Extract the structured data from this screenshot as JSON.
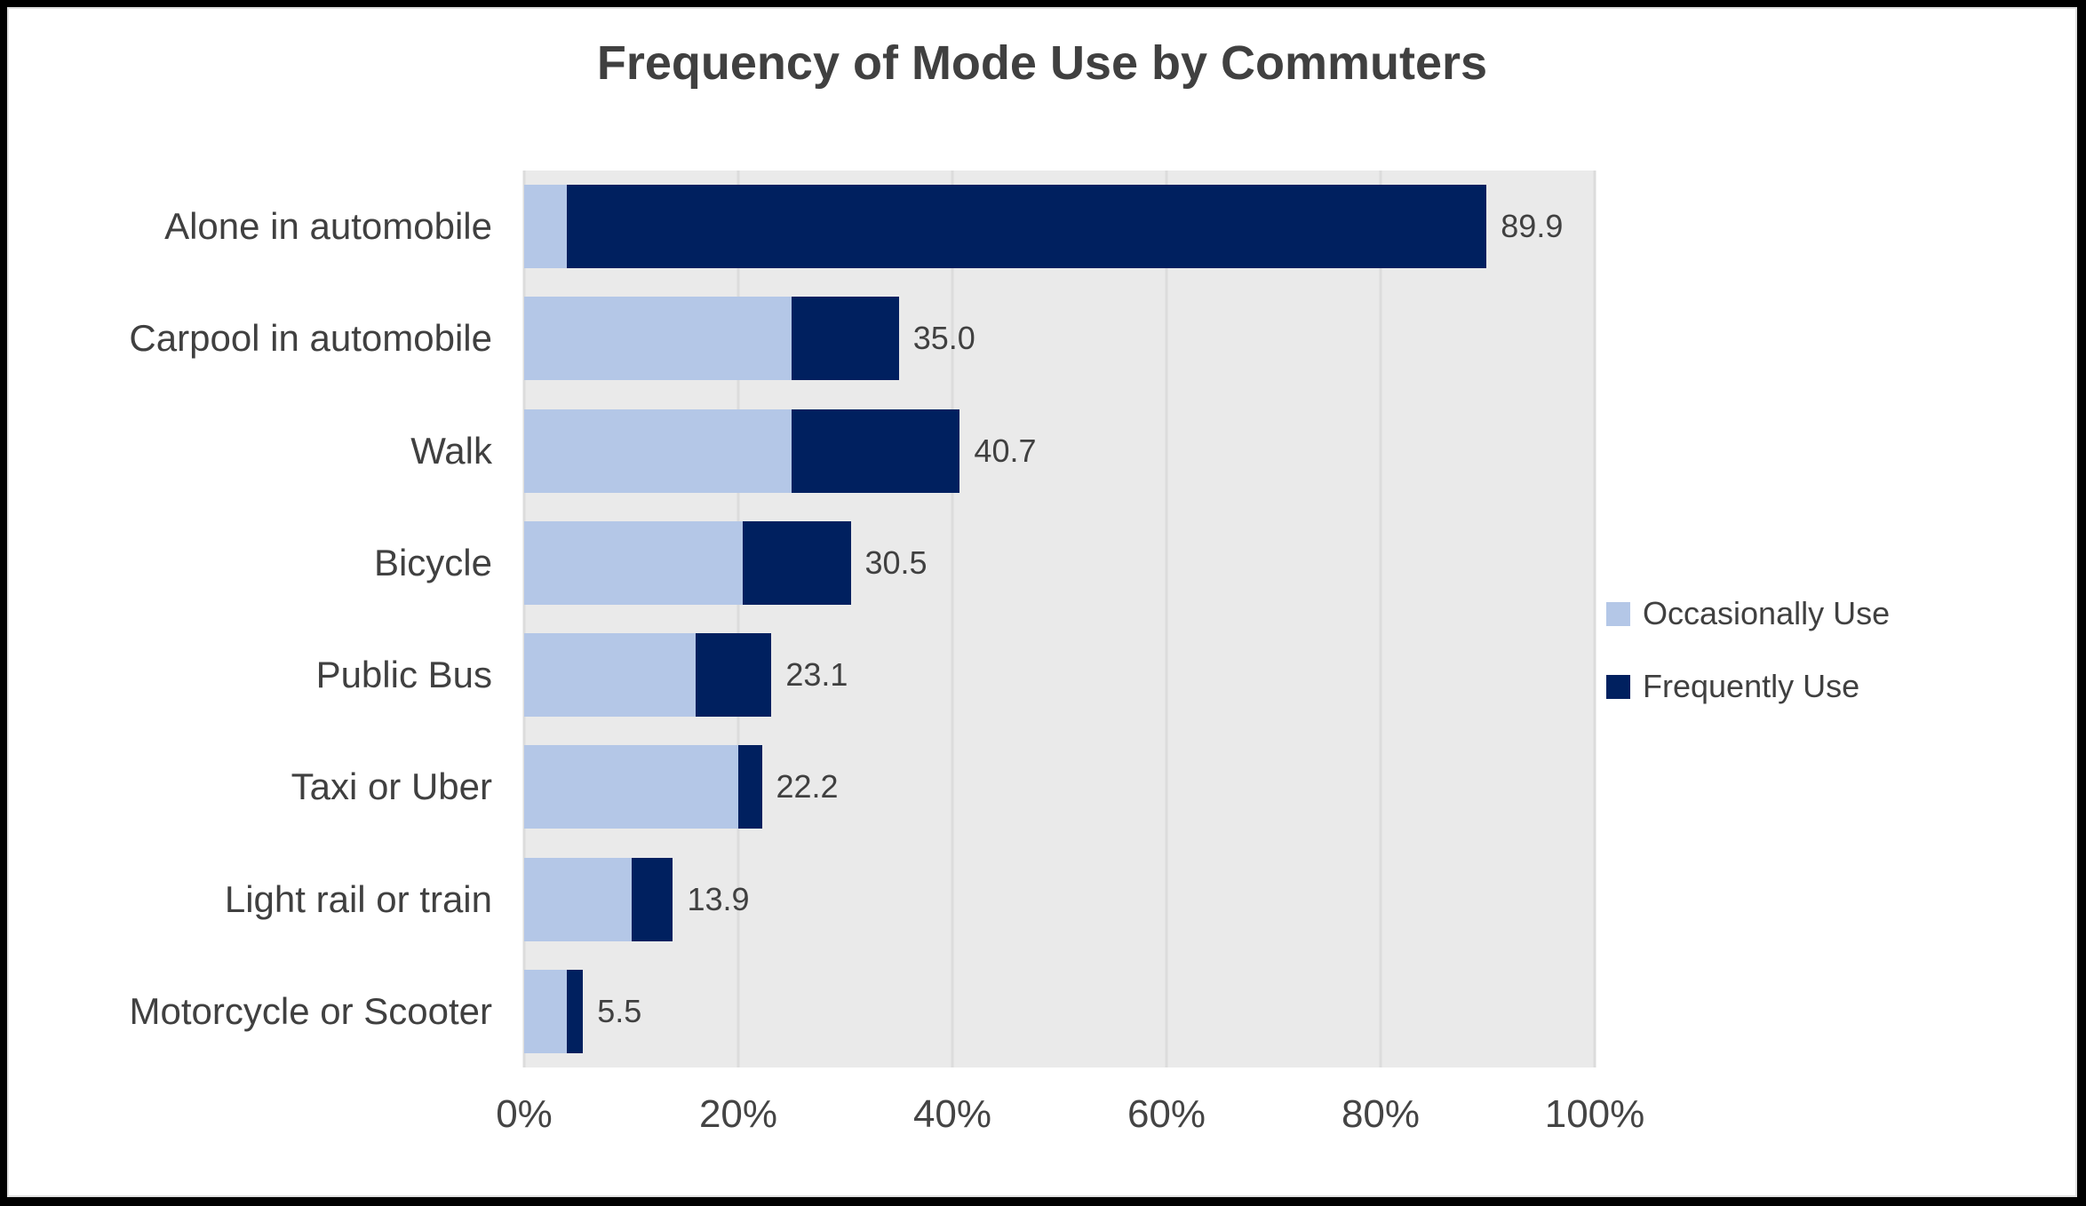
{
  "title": "Frequency of Mode Use by Commuters",
  "colors": {
    "occasionally": "#b4c7e7",
    "frequently": "#00205f",
    "plot_bg": "#eaeaea",
    "gridline": "#dcdcdc",
    "title_text": "#404040",
    "axis_text": "#444444",
    "label_text": "#404040",
    "frame": "#000000",
    "canvas_bg": "#ffffff"
  },
  "chart_data": {
    "type": "bar",
    "orientation": "horizontal",
    "stacked": true,
    "title": "Frequency of Mode Use by Commuters",
    "categories": [
      "Alone in automobile",
      "Carpool in automobile",
      "Walk",
      "Bicycle",
      "Public Bus",
      "Taxi or Uber",
      "Light rail or train",
      "Motorcycle or Scooter"
    ],
    "series": [
      {
        "name": "Occasionally Use",
        "color_key": "occasionally",
        "values": [
          4.0,
          25.0,
          25.0,
          20.4,
          16.0,
          20.0,
          10.0,
          4.0
        ]
      },
      {
        "name": "Frequently Use",
        "color_key": "frequently",
        "values": [
          85.9,
          10.0,
          15.7,
          10.1,
          7.1,
          2.2,
          3.9,
          1.5
        ]
      }
    ],
    "totals": [
      89.9,
      35.0,
      40.7,
      30.5,
      23.1,
      22.2,
      13.9,
      5.5
    ],
    "total_labels": [
      "89.9",
      "35.0",
      "40.7",
      "30.5",
      "23.1",
      "22.2",
      "13.9",
      "5.5"
    ],
    "x_ticks": [
      "0%",
      "20%",
      "40%",
      "60%",
      "80%",
      "100%"
    ],
    "x_tick_values": [
      0,
      20,
      40,
      60,
      80,
      100
    ],
    "xlim": [
      0,
      100
    ],
    "grid": true,
    "legend_position": "right"
  },
  "legend": {
    "items": [
      {
        "label": "Occasionally Use",
        "color_key": "occasionally"
      },
      {
        "label": "Frequently Use",
        "color_key": "frequently"
      }
    ]
  }
}
